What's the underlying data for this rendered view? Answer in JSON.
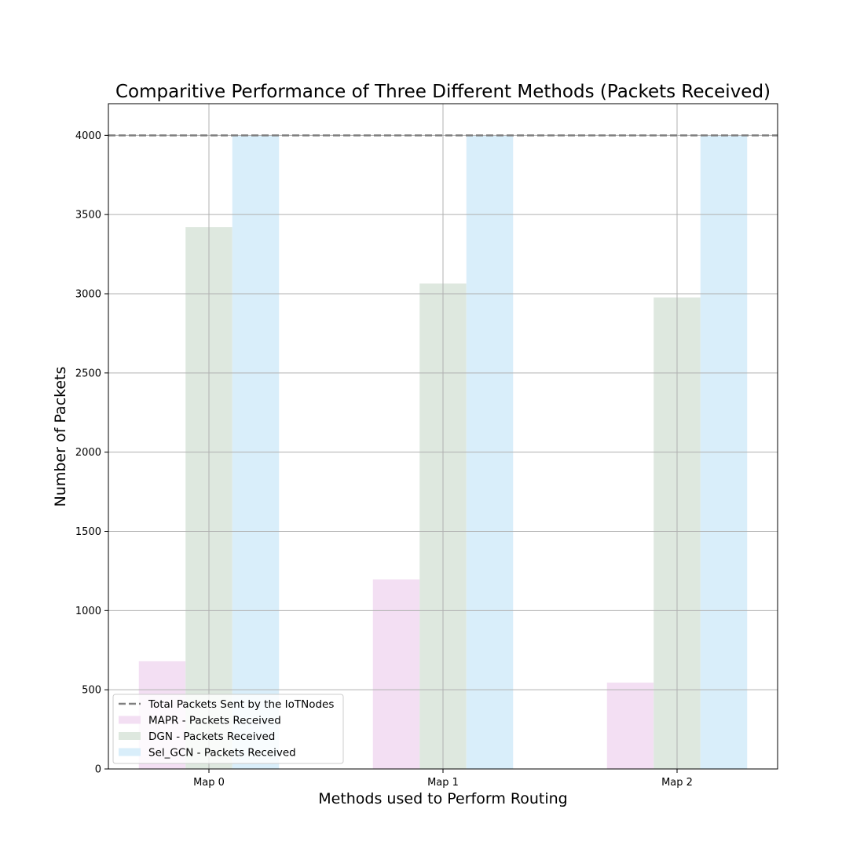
{
  "chart_data": {
    "type": "bar",
    "title": "Comparitive Performance of Three Different Methods (Packets Received)",
    "xlabel": "Methods used to Perform Routing",
    "ylabel": "Number of Packets",
    "categories": [
      "Map 0",
      "Map 1",
      "Map 2"
    ],
    "ylim": [
      0,
      4200
    ],
    "yticks": [
      0,
      500,
      1000,
      1500,
      2000,
      2500,
      3000,
      3500,
      4000
    ],
    "grid": true,
    "legend_position": "lower-left",
    "reference_line": {
      "name": "Total Packets Sent by the IoTNodes",
      "value": 4000,
      "color": "#808080",
      "style": "dashed"
    },
    "series": [
      {
        "name": "MAPR - Packets Received",
        "color": "#f3dff3",
        "values": [
          680,
          1197,
          545
        ]
      },
      {
        "name": "DGN - Packets Received",
        "color": "#dee8df",
        "values": [
          3421,
          3065,
          2977
        ]
      },
      {
        "name": "Sel_GCN - Packets Received",
        "color": "#d9eefa",
        "values": [
          4000,
          4000,
          4000
        ]
      }
    ]
  }
}
